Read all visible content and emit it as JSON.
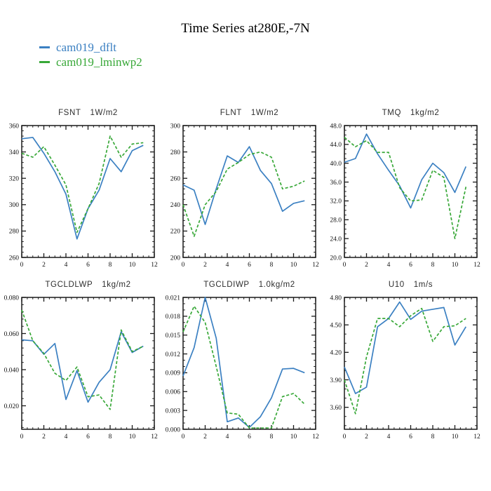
{
  "page": {
    "title": "Time Series at280E,-7N"
  },
  "colors": {
    "axis": "#1a1a1a",
    "blue": "#3b80c2",
    "green": "#38a838"
  },
  "legend": {
    "items": [
      {
        "label": "cam019_dflt",
        "color": "#3b80c2"
      },
      {
        "label": "cam019_lminwp2",
        "color": "#38a838"
      }
    ]
  },
  "chart_data": [
    {
      "type": "line",
      "name": "FSNT",
      "units": "1W/m2",
      "x": [
        0,
        1,
        2,
        3,
        4,
        5,
        6,
        7,
        8,
        9,
        10,
        11
      ],
      "series": [
        {
          "name": "cam019_dflt",
          "color_key": "blue",
          "style": "solid",
          "values": [
            350,
            351,
            339,
            325,
            308,
            274,
            297,
            311,
            335,
            325,
            341,
            345
          ]
        },
        {
          "name": "cam019_lminwp2",
          "color_key": "green",
          "style": "dashed",
          "values": [
            339,
            336,
            344,
            330,
            315,
            279,
            297,
            316,
            352,
            336,
            346,
            347
          ]
        }
      ],
      "xlim": [
        0,
        12
      ],
      "xticks": [
        0,
        2,
        4,
        6,
        8,
        10,
        12
      ],
      "xtick_labels": [
        "0",
        "2",
        "4",
        "6",
        "8",
        "10",
        "12"
      ],
      "x_minor_step": 0.5,
      "ylim": [
        260,
        360
      ],
      "yticks": [
        260,
        280,
        300,
        320,
        340,
        360
      ],
      "ytick_labels": [
        "260",
        "280",
        "300",
        "320",
        "340",
        "360"
      ],
      "y_minor_step": 4
    },
    {
      "type": "line",
      "name": "FLNT",
      "units": "1W/m2",
      "x": [
        0,
        1,
        2,
        3,
        4,
        5,
        6,
        7,
        8,
        9,
        10,
        11
      ],
      "series": [
        {
          "name": "cam019_dflt",
          "color_key": "blue",
          "style": "solid",
          "values": [
            255,
            251,
            225,
            252,
            277,
            272,
            284,
            266,
            256,
            235,
            241,
            243
          ]
        },
        {
          "name": "cam019_lminwp2",
          "color_key": "green",
          "style": "dashed",
          "values": [
            240,
            216,
            240,
            250,
            267,
            272,
            278,
            280,
            276,
            252,
            254,
            258
          ]
        }
      ],
      "xlim": [
        0,
        12
      ],
      "xticks": [
        0,
        2,
        4,
        6,
        8,
        10,
        12
      ],
      "xtick_labels": [
        "0",
        "2",
        "4",
        "6",
        "8",
        "10",
        "12"
      ],
      "x_minor_step": 0.5,
      "ylim": [
        200,
        300
      ],
      "yticks": [
        200,
        220,
        240,
        260,
        280,
        300
      ],
      "ytick_labels": [
        "200",
        "220",
        "240",
        "260",
        "280",
        "300"
      ],
      "y_minor_step": 4
    },
    {
      "type": "line",
      "name": "TMQ",
      "units": "1kg/m2",
      "x": [
        0,
        1,
        2,
        3,
        4,
        5,
        6,
        7,
        8,
        9,
        10,
        11
      ],
      "series": [
        {
          "name": "cam019_dflt",
          "color_key": "blue",
          "style": "solid",
          "values": [
            40.2,
            41.0,
            46.2,
            42.0,
            38.5,
            35.2,
            30.5,
            36.5,
            40.0,
            38.0,
            33.8,
            39.3
          ]
        },
        {
          "name": "cam019_lminwp2",
          "color_key": "green",
          "style": "dashed",
          "values": [
            45.5,
            43.5,
            44.8,
            42.3,
            42.3,
            34.8,
            32.0,
            32.2,
            38.5,
            37.0,
            24.0,
            35.0
          ]
        }
      ],
      "xlim": [
        0,
        12
      ],
      "xticks": [
        0,
        2,
        4,
        6,
        8,
        10,
        12
      ],
      "xtick_labels": [
        "0",
        "2",
        "4",
        "6",
        "8",
        "10",
        "12"
      ],
      "x_minor_step": 0.5,
      "ylim": [
        20.0,
        48.0
      ],
      "yticks": [
        20,
        24,
        28,
        32,
        36,
        40,
        44,
        48
      ],
      "ytick_labels": [
        "20.0",
        "24.0",
        "28.0",
        "32.0",
        "36.0",
        "40.0",
        "44.0",
        "48.0"
      ],
      "y_minor_step": 1
    },
    {
      "type": "line",
      "name": "TGCLDLWP",
      "units": "1kg/m2",
      "x": [
        0,
        1,
        2,
        3,
        4,
        5,
        6,
        7,
        8,
        9,
        10,
        11
      ],
      "series": [
        {
          "name": "cam019_dflt",
          "color_key": "blue",
          "style": "solid",
          "values": [
            0.0565,
            0.056,
            0.0485,
            0.0545,
            0.0235,
            0.0395,
            0.022,
            0.033,
            0.04,
            0.061,
            0.0495,
            0.053
          ]
        },
        {
          "name": "cam019_lminwp2",
          "color_key": "green",
          "style": "dashed",
          "values": [
            0.073,
            0.056,
            0.049,
            0.038,
            0.034,
            0.0415,
            0.025,
            0.026,
            0.018,
            0.062,
            0.05,
            0.053
          ]
        }
      ],
      "xlim": [
        0,
        12
      ],
      "xticks": [
        0,
        2,
        4,
        6,
        8,
        10,
        12
      ],
      "xtick_labels": [
        "0",
        "2",
        "4",
        "6",
        "8",
        "10",
        "12"
      ],
      "x_minor_step": 0.5,
      "ylim": [
        0.007,
        0.08
      ],
      "yticks": [
        0.02,
        0.04,
        0.06,
        0.08
      ],
      "ytick_labels": [
        "0.020",
        "0.040",
        "0.060",
        "0.080"
      ],
      "y_minor_step": 0.004
    },
    {
      "type": "line",
      "name": "TGCLDIWP",
      "units": "1.0kg/m2",
      "x": [
        0,
        1,
        2,
        3,
        4,
        5,
        6,
        7,
        8,
        9,
        10,
        11
      ],
      "series": [
        {
          "name": "cam019_dflt",
          "color_key": "blue",
          "style": "solid",
          "values": [
            0.0085,
            0.013,
            0.021,
            0.0145,
            0.0012,
            0.0018,
            0.0003,
            0.002,
            0.005,
            0.0096,
            0.0097,
            0.009
          ]
        },
        {
          "name": "cam019_lminwp2",
          "color_key": "green",
          "style": "dashed",
          "values": [
            0.0155,
            0.0196,
            0.017,
            0.01,
            0.0026,
            0.0024,
            0.0002,
            0.0002,
            0.0002,
            0.0052,
            0.0057,
            0.004
          ]
        }
      ],
      "xlim": [
        0,
        12
      ],
      "xticks": [
        0,
        2,
        4,
        6,
        8,
        10,
        12
      ],
      "xtick_labels": [
        "0",
        "2",
        "4",
        "6",
        "8",
        "10",
        "12"
      ],
      "x_minor_step": 0.5,
      "ylim": [
        0.0,
        0.021
      ],
      "yticks": [
        0.0,
        0.003,
        0.006,
        0.009,
        0.012,
        0.015,
        0.018,
        0.021
      ],
      "ytick_labels": [
        "0.000",
        "0.003",
        "0.006",
        "0.009",
        "0.012",
        "0.015",
        "0.018",
        "0.021"
      ],
      "y_minor_step": 0.001
    },
    {
      "type": "line",
      "name": "U10",
      "units": "1m/s",
      "x": [
        0,
        1,
        2,
        3,
        4,
        5,
        6,
        7,
        8,
        9,
        10,
        11
      ],
      "series": [
        {
          "name": "cam019_dflt",
          "color_key": "blue",
          "style": "solid",
          "values": [
            4.04,
            3.75,
            3.82,
            4.48,
            4.57,
            4.75,
            4.56,
            4.65,
            4.67,
            4.69,
            4.28,
            4.48
          ]
        },
        {
          "name": "cam019_lminwp2",
          "color_key": "green",
          "style": "dashed",
          "values": [
            3.9,
            3.53,
            4.15,
            4.57,
            4.57,
            4.48,
            4.6,
            4.68,
            4.32,
            4.48,
            4.49,
            4.57
          ]
        }
      ],
      "xlim": [
        0,
        12
      ],
      "xticks": [
        0,
        2,
        4,
        6,
        8,
        10,
        12
      ],
      "xtick_labels": [
        "0",
        "2",
        "4",
        "6",
        "8",
        "10",
        "12"
      ],
      "x_minor_step": 0.5,
      "ylim": [
        3.36,
        4.8
      ],
      "yticks": [
        3.6,
        3.9,
        4.2,
        4.5,
        4.8
      ],
      "ytick_labels": [
        "3.60",
        "3.90",
        "4.20",
        "4.50",
        "4.80"
      ],
      "y_minor_step": 0.1
    }
  ]
}
